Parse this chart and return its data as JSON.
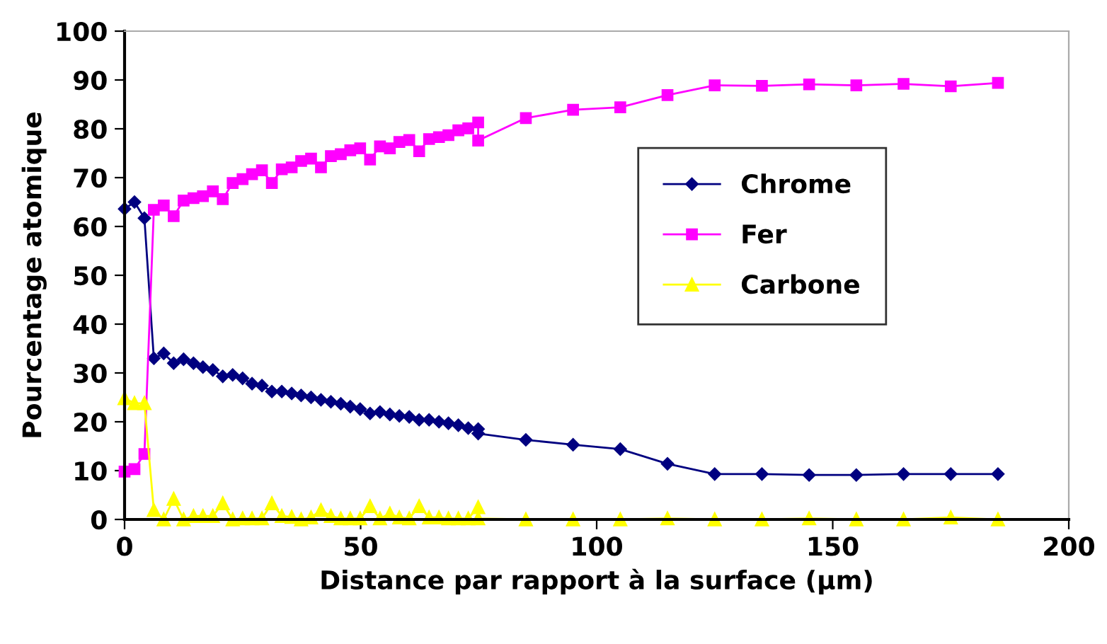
{
  "chart_data": {
    "type": "line",
    "xlabel": "Distance par rapport à la surface (µm)",
    "ylabel": "Pourcentage atomique",
    "x": [
      0,
      2.1,
      4.2,
      6.2,
      8.3,
      10.4,
      12.5,
      14.6,
      16.6,
      18.7,
      20.8,
      22.9,
      25.0,
      27.0,
      29.1,
      31.2,
      33.3,
      35.4,
      37.4,
      39.5,
      41.6,
      43.7,
      45.8,
      47.8,
      49.9,
      52.0,
      54.1,
      56.2,
      58.2,
      60.3,
      62.4,
      64.5,
      66.6,
      68.6,
      70.7,
      72.8,
      74.9,
      74.9,
      85,
      95,
      105,
      115,
      125,
      135,
      145,
      155,
      165,
      175,
      185
    ],
    "series": [
      {
        "name": "Chrome",
        "color": "#000080",
        "marker": "diamond",
        "values": [
          63.6,
          65,
          61.7,
          33,
          34,
          32,
          32.8,
          32,
          31.2,
          30.6,
          29.3,
          29.6,
          28.9,
          27.8,
          27.4,
          26.2,
          26.2,
          25.8,
          25.4,
          25,
          24.5,
          24.1,
          23.7,
          23.1,
          22.6,
          21.7,
          22,
          21.5,
          21.2,
          21,
          20.4,
          20.4,
          20,
          19.7,
          19.3,
          18.7,
          18.5,
          17.6,
          16.3,
          15.3,
          14.4,
          11.4,
          9.3,
          9.3,
          9.1,
          9.1,
          9.3,
          9.3,
          9.3
        ]
      },
      {
        "name": "Fer",
        "color": "#ff00ff",
        "marker": "square",
        "values": [
          9.8,
          10.3,
          13.4,
          63.4,
          64.3,
          62.1,
          65.3,
          65.8,
          66.2,
          67.2,
          65.6,
          68.9,
          69.7,
          70.7,
          71.5,
          68.9,
          71.7,
          72.1,
          73.4,
          73.9,
          72.1,
          74.4,
          74.8,
          75.6,
          76,
          73.7,
          76.4,
          76,
          77.3,
          77.7,
          75.4,
          77.9,
          78.3,
          78.7,
          79.7,
          80.1,
          81.3,
          77.6,
          82.2,
          83.9,
          84.4,
          86.9,
          88.9,
          88.8,
          89.1,
          88.9,
          89.2,
          88.7,
          89.4
        ]
      },
      {
        "name": "Carbone",
        "color": "#ffff00",
        "marker": "triangle",
        "values": [
          24.8,
          23.8,
          23.8,
          1.9,
          0,
          4.2,
          0,
          0.7,
          0.7,
          0.7,
          3.3,
          0,
          0.2,
          0.2,
          0.2,
          3.3,
          0.7,
          0.5,
          0,
          0.4,
          1.9,
          0.7,
          0.2,
          0.2,
          0.2,
          2.7,
          0.2,
          1.2,
          0.4,
          0.2,
          2.7,
          0.4,
          0.4,
          0.2,
          0.2,
          0.2,
          2.5,
          0.2,
          0,
          0,
          0,
          0.2,
          0,
          0,
          0.2,
          0,
          0,
          0.4,
          0
        ]
      }
    ],
    "xlim": [
      0,
      200
    ],
    "xticks": [
      0,
      50,
      100,
      150,
      200
    ],
    "ylim": [
      0,
      100
    ],
    "yticks": [
      0,
      10,
      20,
      30,
      40,
      50,
      60,
      70,
      80,
      90,
      100
    ],
    "grid": false,
    "legend": "right",
    "line_style": "solid"
  }
}
